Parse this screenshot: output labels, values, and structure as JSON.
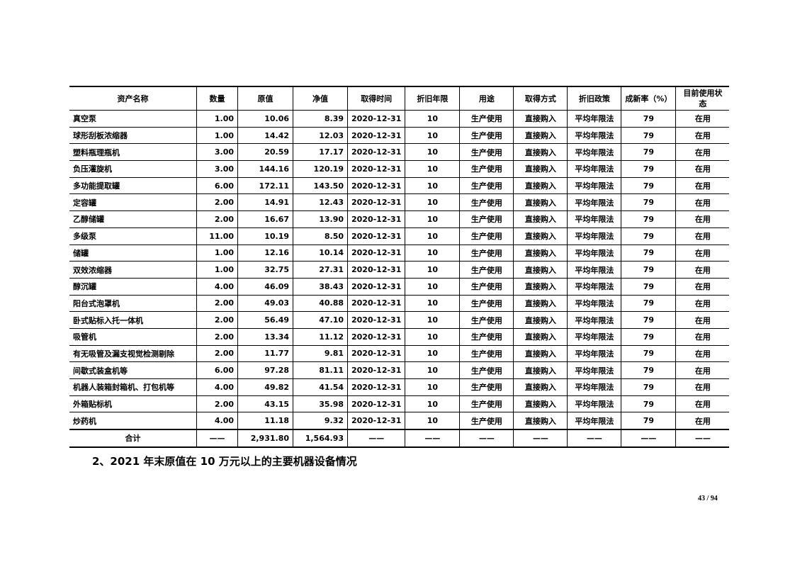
{
  "table": {
    "headers": [
      "资产名称",
      "数量",
      "原值",
      "净值",
      "取得时间",
      "折旧年限",
      "用途",
      "取得方式",
      "折旧政策",
      "成新率（%）",
      "目前使用状态"
    ],
    "rows": [
      [
        "真空泵",
        "1.00",
        "10.06",
        "8.39",
        "2020-12-31",
        "10",
        "生产使用",
        "直接购入",
        "平均年限法",
        "79",
        "在用"
      ],
      [
        "球形刮板浓缩器",
        "1.00",
        "14.42",
        "12.03",
        "2020-12-31",
        "10",
        "生产使用",
        "直接购入",
        "平均年限法",
        "79",
        "在用"
      ],
      [
        "塑料瓶理瓶机",
        "3.00",
        "20.59",
        "17.17",
        "2020-12-31",
        "10",
        "生产使用",
        "直接购入",
        "平均年限法",
        "79",
        "在用"
      ],
      [
        "负压灌旋机",
        "3.00",
        "144.16",
        "120.19",
        "2020-12-31",
        "10",
        "生产使用",
        "直接购入",
        "平均年限法",
        "79",
        "在用"
      ],
      [
        "多功能提取罐",
        "6.00",
        "172.11",
        "143.50",
        "2020-12-31",
        "10",
        "生产使用",
        "直接购入",
        "平均年限法",
        "79",
        "在用"
      ],
      [
        "定容罐",
        "2.00",
        "14.91",
        "12.43",
        "2020-12-31",
        "10",
        "生产使用",
        "直接购入",
        "平均年限法",
        "79",
        "在用"
      ],
      [
        "乙醇储罐",
        "2.00",
        "16.67",
        "13.90",
        "2020-12-31",
        "10",
        "生产使用",
        "直接购入",
        "平均年限法",
        "79",
        "在用"
      ],
      [
        "多级泵",
        "11.00",
        "10.19",
        "8.50",
        "2020-12-31",
        "10",
        "生产使用",
        "直接购入",
        "平均年限法",
        "79",
        "在用"
      ],
      [
        "储罐",
        "1.00",
        "12.16",
        "10.14",
        "2020-12-31",
        "10",
        "生产使用",
        "直接购入",
        "平均年限法",
        "79",
        "在用"
      ],
      [
        "双效浓缩器",
        "1.00",
        "32.75",
        "27.31",
        "2020-12-31",
        "10",
        "生产使用",
        "直接购入",
        "平均年限法",
        "79",
        "在用"
      ],
      [
        "醇沉罐",
        "4.00",
        "46.09",
        "38.43",
        "2020-12-31",
        "10",
        "生产使用",
        "直接购入",
        "平均年限法",
        "79",
        "在用"
      ],
      [
        "阳台式泡罩机",
        "2.00",
        "49.03",
        "40.88",
        "2020-12-31",
        "10",
        "生产使用",
        "直接购入",
        "平均年限法",
        "79",
        "在用"
      ],
      [
        "卧式贴标入托一体机",
        "2.00",
        "56.49",
        "47.10",
        "2020-12-31",
        "10",
        "生产使用",
        "直接购入",
        "平均年限法",
        "79",
        "在用"
      ],
      [
        "吸管机",
        "2.00",
        "13.34",
        "11.12",
        "2020-12-31",
        "10",
        "生产使用",
        "直接购入",
        "平均年限法",
        "79",
        "在用"
      ],
      [
        "有无吸管及漏支视觉检测剔除",
        "2.00",
        "11.77",
        "9.81",
        "2020-12-31",
        "10",
        "生产使用",
        "直接购入",
        "平均年限法",
        "79",
        "在用"
      ],
      [
        "间歇式装盒机等",
        "6.00",
        "97.28",
        "81.11",
        "2020-12-31",
        "10",
        "生产使用",
        "直接购入",
        "平均年限法",
        "79",
        "在用"
      ],
      [
        "机器人装箱封箱机、打包机等",
        "4.00",
        "49.82",
        "41.54",
        "2020-12-31",
        "10",
        "生产使用",
        "直接购入",
        "平均年限法",
        "79",
        "在用"
      ],
      [
        "外箱贴标机",
        "2.00",
        "43.15",
        "35.98",
        "2020-12-31",
        "10",
        "生产使用",
        "直接购入",
        "平均年限法",
        "79",
        "在用"
      ],
      [
        "炒药机",
        "4.00",
        "11.18",
        "9.32",
        "2020-12-31",
        "10",
        "生产使用",
        "直接购入",
        "平均年限法",
        "79",
        "在用"
      ]
    ],
    "total": [
      "合计",
      "——",
      "2,931.80",
      "1,564.93",
      "——",
      "——",
      "——",
      "——",
      "——",
      "——",
      "——"
    ]
  },
  "heading": "2、2021 年末原值在 10 万元以上的主要机器设备情况",
  "page_number": "43 / 94"
}
